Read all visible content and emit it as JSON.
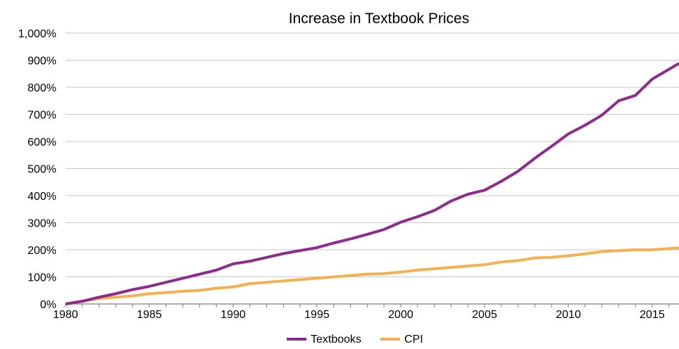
{
  "chart_data": {
    "type": "line",
    "title": "Increase in Textbook Prices",
    "xlabel": "",
    "ylabel": "",
    "xlim": [
      1980,
      2016.6
    ],
    "ylim": [
      0,
      1000
    ],
    "y_unit": "%",
    "grid": "horizontal",
    "legend_position": "bottom",
    "x_ticks": [
      1980,
      1985,
      1990,
      1995,
      2000,
      2005,
      2010,
      2015
    ],
    "y_ticks": [
      {
        "value": 0,
        "label": "0%"
      },
      {
        "value": 100,
        "label": "100%"
      },
      {
        "value": 200,
        "label": "200%"
      },
      {
        "value": 300,
        "label": "300%"
      },
      {
        "value": 400,
        "label": "400%"
      },
      {
        "value": 500,
        "label": "500%"
      },
      {
        "value": 600,
        "label": "600%"
      },
      {
        "value": 700,
        "label": "700%"
      },
      {
        "value": 800,
        "label": "800%"
      },
      {
        "value": 900,
        "label": "900%"
      },
      {
        "value": 1000,
        "label": "1,000%"
      }
    ],
    "x": [
      1980,
      1981,
      1982,
      1983,
      1984,
      1985,
      1986,
      1987,
      1988,
      1989,
      1990,
      1991,
      1992,
      1993,
      1994,
      1995,
      1996,
      1997,
      1998,
      1999,
      2000,
      2001,
      2002,
      2003,
      2004,
      2005,
      2006,
      2007,
      2008,
      2009,
      2010,
      2011,
      2012,
      2013,
      2014,
      2015,
      2016.6
    ],
    "series": [
      {
        "name": "Textbooks",
        "color": "#8e2c8e",
        "values": [
          0,
          10,
          25,
          38,
          53,
          65,
          80,
          95,
          110,
          125,
          148,
          158,
          172,
          186,
          197,
          208,
          225,
          240,
          257,
          275,
          302,
          322,
          345,
          380,
          405,
          420,
          453,
          490,
          538,
          582,
          628,
          660,
          697,
          750,
          770,
          830,
          888
        ]
      },
      {
        "name": "CPI",
        "color": "#f5b04f",
        "values": [
          0,
          10,
          20,
          25,
          30,
          38,
          42,
          47,
          50,
          58,
          63,
          75,
          80,
          85,
          90,
          95,
          100,
          105,
          110,
          112,
          118,
          125,
          130,
          135,
          140,
          145,
          155,
          160,
          170,
          172,
          178,
          185,
          193,
          197,
          200,
          200,
          207
        ]
      }
    ]
  }
}
